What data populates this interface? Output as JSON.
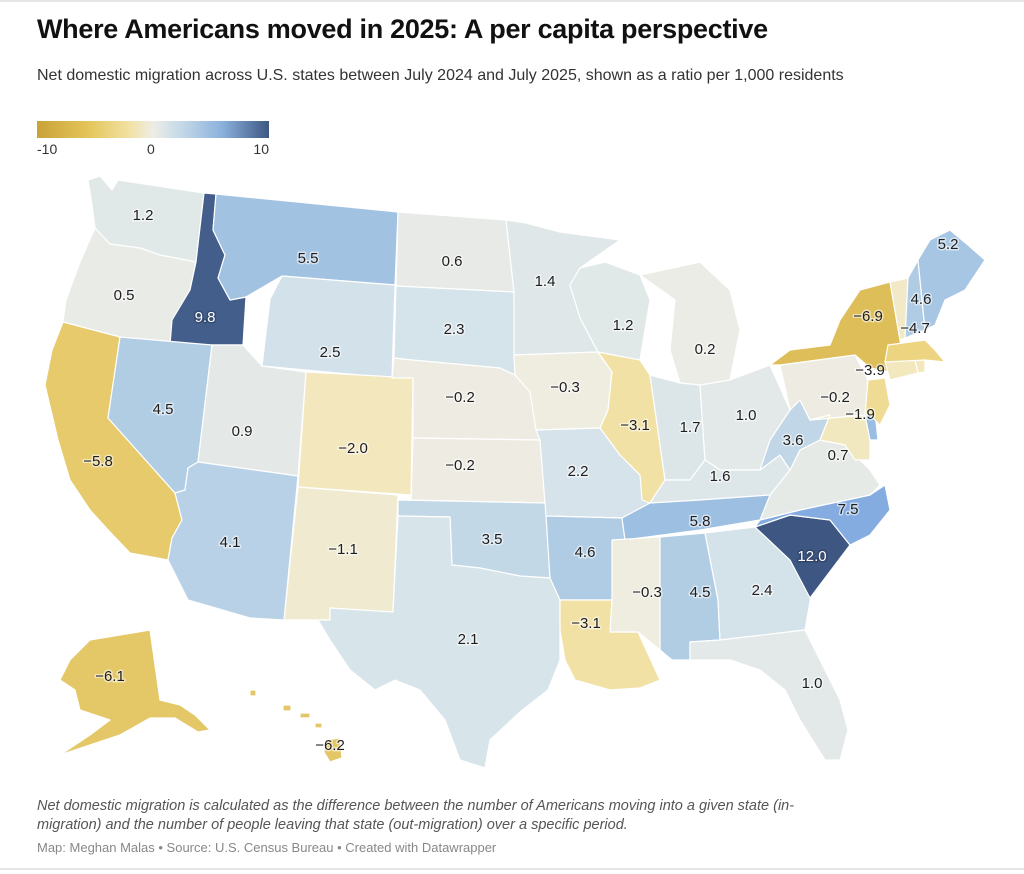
{
  "title": "Where Americans moved in 2025: A per capita perspective",
  "subtitle": "Net domestic migration across U.S. states between July 2024 and July 2025, shown as a ratio per 1,000 residents",
  "legend": {
    "type": "continuous",
    "min_label": "-10",
    "mid_label": "0",
    "max_label": "10",
    "colors": {
      "min": "#c9a238",
      "mid": "#eeede6",
      "max": "#3d5782"
    }
  },
  "note": "Net domestic migration is calculated as the difference between the number of Americans moving into a given state (in-migration) and the number of people leaving that state (out-migration) over a specific period.",
  "credit": "Map: Meghan Malas • Source: U.S. Census Bureau • Created with Datawrapper",
  "chart_data": {
    "type": "choropleth",
    "title": "Where Americans moved in 2025: A per capita perspective",
    "unit": "net domestic migrants per 1,000 residents",
    "scale": {
      "min": -10,
      "mid": 0,
      "max": 10
    },
    "states": [
      {
        "code": "WA",
        "name": "Washington",
        "value": 1.2,
        "label": "1.2"
      },
      {
        "code": "OR",
        "name": "Oregon",
        "value": 0.5,
        "label": "0.5"
      },
      {
        "code": "CA",
        "name": "California",
        "value": -5.8,
        "label": "−5.8"
      },
      {
        "code": "ID",
        "name": "Idaho",
        "value": 9.8,
        "label": "9.8"
      },
      {
        "code": "NV",
        "name": "Nevada",
        "value": 4.5,
        "label": "4.5"
      },
      {
        "code": "MT",
        "name": "Montana",
        "value": 5.5,
        "label": "5.5"
      },
      {
        "code": "WY",
        "name": "Wyoming",
        "value": 2.5,
        "label": "2.5"
      },
      {
        "code": "UT",
        "name": "Utah",
        "value": 0.9,
        "label": "0.9"
      },
      {
        "code": "AZ",
        "name": "Arizona",
        "value": 4.1,
        "label": "4.1"
      },
      {
        "code": "CO",
        "name": "Colorado",
        "value": -2.0,
        "label": "−2.0"
      },
      {
        "code": "NM",
        "name": "New Mexico",
        "value": -1.1,
        "label": "−1.1"
      },
      {
        "code": "ND",
        "name": "North Dakota",
        "value": 0.6,
        "label": "0.6"
      },
      {
        "code": "SD",
        "name": "South Dakota",
        "value": 2.3,
        "label": "2.3"
      },
      {
        "code": "NE",
        "name": "Nebraska",
        "value": -0.2,
        "label": "−0.2"
      },
      {
        "code": "KS",
        "name": "Kansas",
        "value": -0.2,
        "label": "−0.2"
      },
      {
        "code": "OK",
        "name": "Oklahoma",
        "value": 3.5,
        "label": "3.5"
      },
      {
        "code": "TX",
        "name": "Texas",
        "value": 2.1,
        "label": "2.1"
      },
      {
        "code": "MN",
        "name": "Minnesota",
        "value": 1.4,
        "label": "1.4"
      },
      {
        "code": "IA",
        "name": "Iowa",
        "value": -0.3,
        "label": "−0.3"
      },
      {
        "code": "MO",
        "name": "Missouri",
        "value": 2.2,
        "label": "2.2"
      },
      {
        "code": "AR",
        "name": "Arkansas",
        "value": 4.6,
        "label": "4.6"
      },
      {
        "code": "LA",
        "name": "Louisiana",
        "value": -3.1,
        "label": "−3.1"
      },
      {
        "code": "WI",
        "name": "Wisconsin",
        "value": 1.2,
        "label": "1.2"
      },
      {
        "code": "IL",
        "name": "Illinois",
        "value": -3.1,
        "label": "−3.1"
      },
      {
        "code": "MI",
        "name": "Michigan",
        "value": 0.2,
        "label": "0.2"
      },
      {
        "code": "IN",
        "name": "Indiana",
        "value": 1.7,
        "label": "1.7"
      },
      {
        "code": "OH",
        "name": "Ohio",
        "value": 1.0,
        "label": "1.0"
      },
      {
        "code": "KY",
        "name": "Kentucky",
        "value": 1.6,
        "label": "1.6"
      },
      {
        "code": "TN",
        "name": "Tennessee",
        "value": 5.8,
        "label": "5.8"
      },
      {
        "code": "MS",
        "name": "Mississippi",
        "value": -0.3,
        "label": "−0.3"
      },
      {
        "code": "AL",
        "name": "Alabama",
        "value": 4.5,
        "label": "4.5"
      },
      {
        "code": "GA",
        "name": "Georgia",
        "value": 2.4,
        "label": "2.4"
      },
      {
        "code": "FL",
        "name": "Florida",
        "value": 1.0,
        "label": "1.0"
      },
      {
        "code": "SC",
        "name": "South Carolina",
        "value": 12.0,
        "label": "12.0"
      },
      {
        "code": "NC",
        "name": "North Carolina",
        "value": 7.5,
        "label": "7.5"
      },
      {
        "code": "VA",
        "name": "Virginia",
        "value": 0.7,
        "label": "0.7"
      },
      {
        "code": "WV",
        "name": "West Virginia",
        "value": 3.6,
        "label": "3.6"
      },
      {
        "code": "PA",
        "name": "Pennsylvania",
        "value": -0.2,
        "label": "−0.2"
      },
      {
        "code": "NY",
        "name": "New York",
        "value": -6.9,
        "label": "−6.9"
      },
      {
        "code": "MD",
        "name": "Maryland",
        "value": -1.9,
        "label": "−1.9"
      },
      {
        "code": "DE",
        "name": "Delaware",
        "value": 6.0,
        "label": ""
      },
      {
        "code": "NJ",
        "name": "New Jersey",
        "value": -3.9,
        "label": "−3.9"
      },
      {
        "code": "CT",
        "name": "Connecticut",
        "value": -2.0,
        "label": ""
      },
      {
        "code": "RI",
        "name": "Rhode Island",
        "value": -2.0,
        "label": ""
      },
      {
        "code": "MA",
        "name": "Massachusetts",
        "value": -4.7,
        "label": "−4.7"
      },
      {
        "code": "VT",
        "name": "Vermont",
        "value": -1.5,
        "label": ""
      },
      {
        "code": "NH",
        "name": "New Hampshire",
        "value": 4.6,
        "label": "4.6"
      },
      {
        "code": "ME",
        "name": "Maine",
        "value": 5.2,
        "label": "5.2"
      },
      {
        "code": "AK",
        "name": "Alaska",
        "value": -6.1,
        "label": "−6.1"
      },
      {
        "code": "HI",
        "name": "Hawaii",
        "value": -6.2,
        "label": "−6.2"
      }
    ]
  }
}
